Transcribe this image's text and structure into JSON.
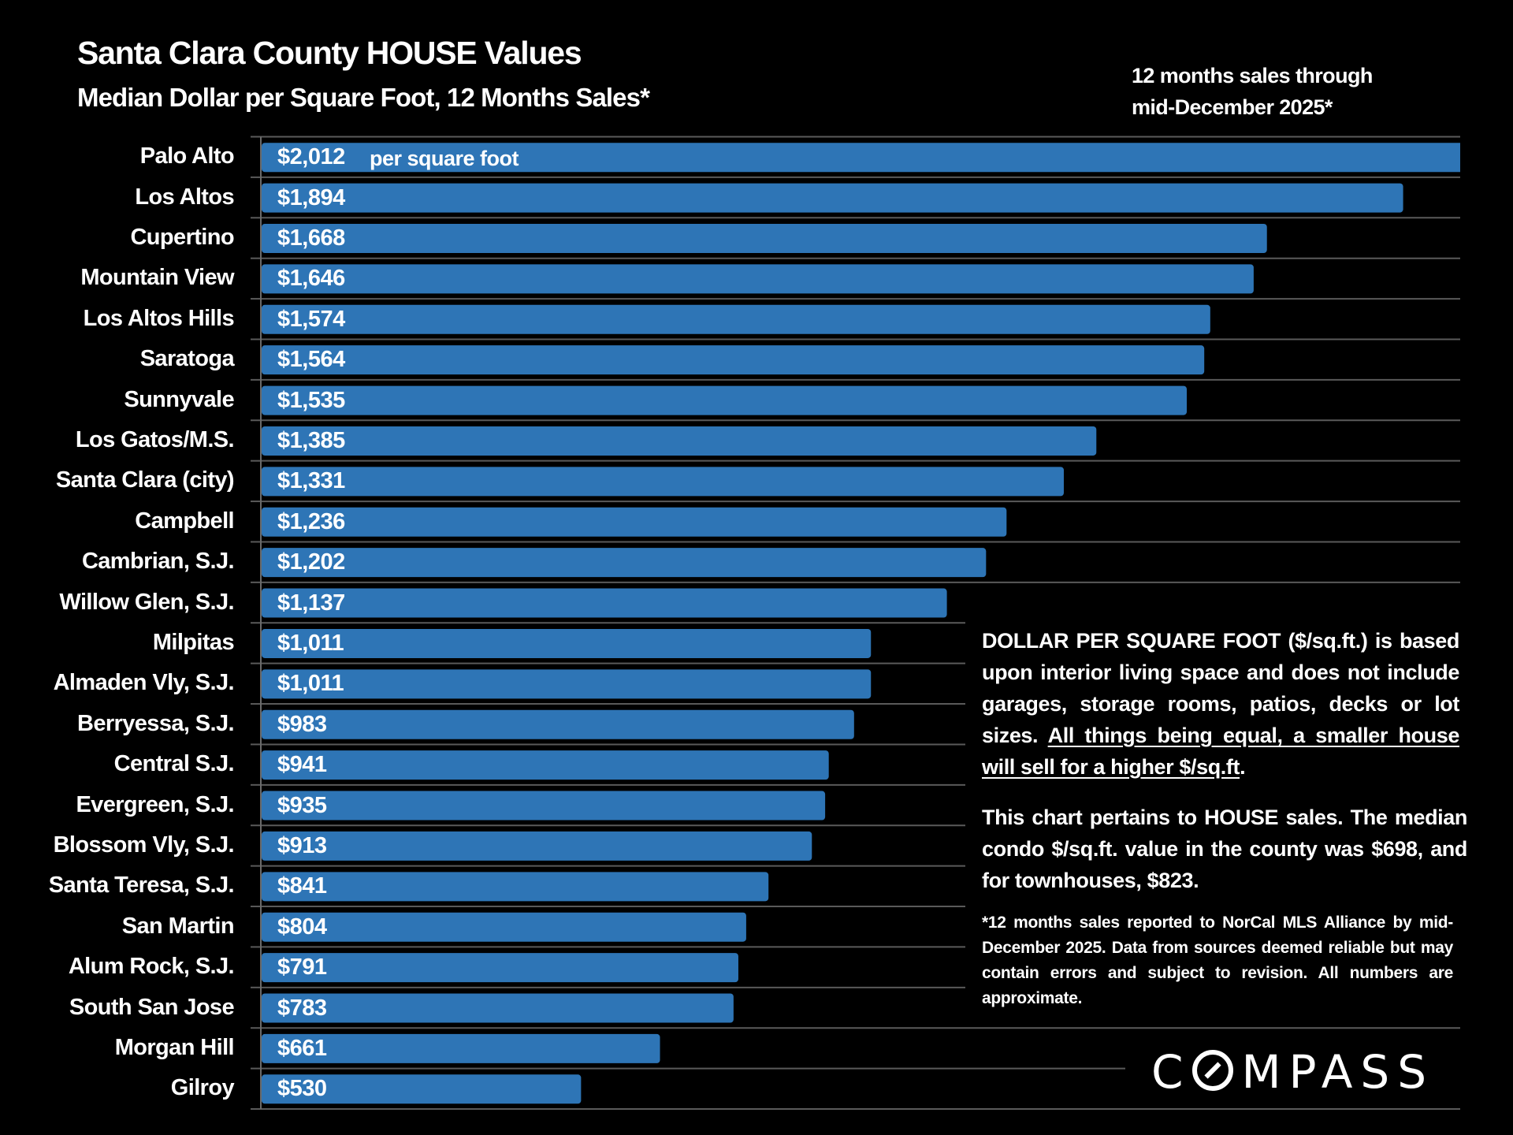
{
  "header": {
    "title": "Santa Clara County HOUSE Values",
    "subtitle": "Median Dollar per Square Foot, 12 Months Sales*",
    "period_line1": "12 months sales through",
    "period_line2": "mid-December 2025*"
  },
  "chart_data": {
    "type": "bar",
    "orientation": "horizontal",
    "title": "Santa Clara County HOUSE Values",
    "subtitle": "Median Dollar per Square Foot, 12 Months Sales*",
    "xlabel": "",
    "ylabel": "",
    "unit_note": "per square foot",
    "xlim": [
      0,
      1990
    ],
    "grid": true,
    "bar_color": "#2e75b6",
    "categories": [
      "Palo Alto",
      "Los Altos",
      "Cupertino",
      "Mountain View",
      "Los Altos Hills",
      "Saratoga",
      "Sunnyvale",
      "Los Gatos/M.S.",
      "Santa Clara (city)",
      "Campbell",
      "Cambrian, S.J.",
      "Willow Glen, S.J.",
      "Milpitas",
      "Almaden Vly, S.J.",
      "Berryessa, S.J.",
      "Central S.J.",
      "Evergreen, S.J.",
      "Blossom Vly, S.J.",
      "Santa Teresa, S.J.",
      "San Martin",
      "Alum Rock, S.J.",
      "South San Jose",
      "Morgan Hill",
      "Gilroy"
    ],
    "values": [
      2012,
      1894,
      1668,
      1646,
      1574,
      1564,
      1535,
      1385,
      1331,
      1236,
      1202,
      1137,
      1011,
      1011,
      983,
      941,
      935,
      913,
      841,
      804,
      791,
      783,
      661,
      530
    ],
    "value_labels": [
      "$2,012",
      "$1,894",
      "$1,668",
      "$1,646",
      "$1,574",
      "$1,564",
      "$1,535",
      "$1,385",
      "$1,331",
      "$1,236",
      "$1,202",
      "$1,137",
      "$1,011",
      "$1,011",
      "$983",
      "$941",
      "$935",
      "$913",
      "$841",
      "$804",
      "$791",
      "$783",
      "$661",
      "$530"
    ]
  },
  "notes": {
    "p1_plain": "DOLLAR PER SQUARE FOOT ($/sq.ft.) is based upon interior living space and does not include garages, storage rooms, patios, decks or lot sizes. ",
    "p1_underlined": "All things being equal, a smaller house will sell for a higher $/sq.ft",
    "p1_end": ".",
    "p2": "This chart pertains to HOUSE sales. The median condo $/sq.ft. value in the county was $698, and for townhouses, $823.",
    "p3": "*12 months sales reported to NorCal MLS Alliance by mid-December 2025. Data from sources deemed reliable but may contain errors and subject to revision. All numbers are approximate."
  },
  "brand": {
    "logo_left": "C",
    "logo_right": "MPASS",
    "logo_name": "COMPASS"
  }
}
